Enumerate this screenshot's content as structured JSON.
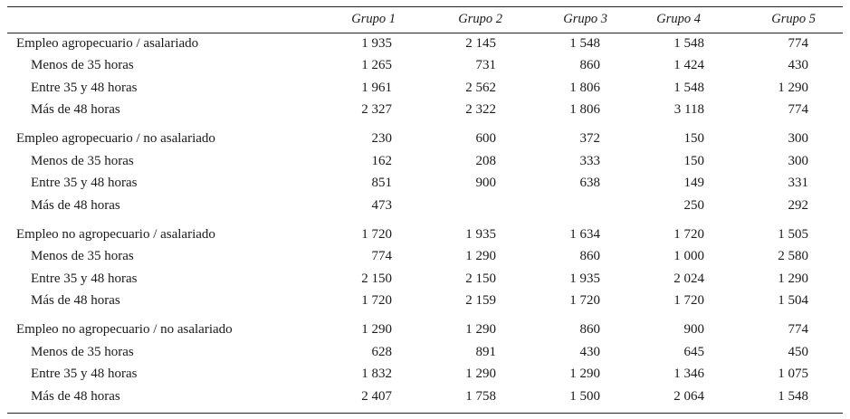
{
  "table": {
    "headers": [
      "Grupo 1",
      "Grupo 2",
      "Grupo 3",
      "Grupo 4",
      "Grupo 5"
    ],
    "rows": [
      {
        "label": "Empleo agropecuario / asalariado",
        "values": [
          "1 935",
          "2 145",
          "1 548",
          "1 548",
          "774"
        ]
      },
      {
        "label": "Menos de 35 horas",
        "values": [
          "1 265",
          "731",
          "860",
          "1 424",
          "430"
        ]
      },
      {
        "label": "Entre 35 y 48 horas",
        "values": [
          "1 961",
          "2 562",
          "1 806",
          "1 548",
          "1 290"
        ]
      },
      {
        "label": "Más de 48 horas",
        "values": [
          "2 327",
          "2 322",
          "1 806",
          "3 118",
          "774"
        ]
      },
      {
        "label": "Empleo agropecuario / no asalariado",
        "values": [
          "230",
          "600",
          "372",
          "150",
          "300"
        ]
      },
      {
        "label": "Menos de 35 horas",
        "values": [
          "162",
          "208",
          "333",
          "150",
          "300"
        ]
      },
      {
        "label": "Entre 35 y 48 horas",
        "values": [
          "851",
          "900",
          "638",
          "149",
          "331"
        ]
      },
      {
        "label": "Más de 48 horas",
        "values": [
          "473",
          "",
          "",
          "250",
          "292"
        ]
      },
      {
        "label": "Empleo no agropecuario / asalariado",
        "values": [
          "1 720",
          "1 935",
          "1 634",
          "1 720",
          "1 505"
        ]
      },
      {
        "label": "Menos de 35 horas",
        "values": [
          "774",
          "1 290",
          "860",
          "1 000",
          "2 580"
        ]
      },
      {
        "label": "Entre 35 y 48 horas",
        "values": [
          "2 150",
          "2 150",
          "1 935",
          "2 024",
          "1 290"
        ]
      },
      {
        "label": "Más de 48 horas",
        "values": [
          "1 720",
          "2 159",
          "1 720",
          "1 720",
          "1 504"
        ]
      },
      {
        "label": "Empleo no agropecuario / no asalariado",
        "values": [
          "1 290",
          "1 290",
          "860",
          "900",
          "774"
        ]
      },
      {
        "label": "Menos de 35 horas",
        "values": [
          "628",
          "891",
          "430",
          "645",
          "450"
        ]
      },
      {
        "label": "Entre 35 y 48 horas",
        "values": [
          "1 832",
          "1 290",
          "1 290",
          "1 346",
          "1 075"
        ]
      },
      {
        "label": "Más de 48 horas",
        "values": [
          "2 407",
          "1 758",
          "1 500",
          "2 064",
          "1 548"
        ]
      }
    ]
  }
}
